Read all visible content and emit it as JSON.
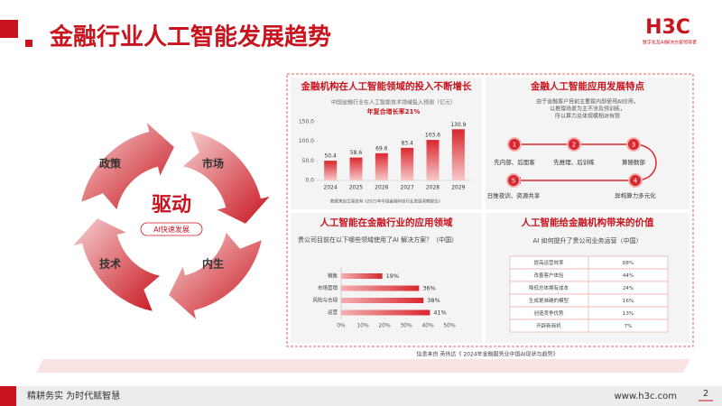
{
  "header": {
    "title": "金融行业人工智能发展趋势",
    "logo": "H3C",
    "logo_tagline": "数字化及AI解决方案领导者"
  },
  "cycle": {
    "center": "驱动",
    "badge": "AI快速发展",
    "drivers": [
      "政策",
      "市场",
      "内生",
      "技术"
    ]
  },
  "chart_data": [
    {
      "type": "bar",
      "panel_title": "金融机构在人工智能领域的投入不断增长",
      "title": "中国金融行业在人工智能技术领域投入预测（亿元）",
      "subtitle": "年复合增长率21%",
      "categories": [
        "2024",
        "2025",
        "2026",
        "2027",
        "2028",
        "2029"
      ],
      "values": [
        50.4,
        58.6,
        69.6,
        83.4,
        103.6,
        130.9
      ],
      "color": "#d9272e",
      "ylim": [
        0,
        150
      ],
      "yticks": [
        {
          "value": 0,
          "label": "0.0"
        },
        {
          "value": 50,
          "label": "50.0"
        },
        {
          "value": 100,
          "label": "100.0"
        },
        {
          "value": 150,
          "label": "150.0"
        }
      ],
      "source": "数据来自艾瑞咨询《2025年中国金融科技行业发展洞察报告》"
    },
    {
      "type": "hbar",
      "panel_title": "人工智能在金融行业的应用领域",
      "title": "贵公司目前在以下哪些领域使用了AI 解决方案？（中国）",
      "categories": [
        "销售",
        "市场营销",
        "风险与合规",
        "运营"
      ],
      "values": [
        19,
        36,
        38,
        41
      ],
      "value_labels": [
        "19%",
        "36%",
        "38%",
        "41%"
      ],
      "color": "#d9272e",
      "xlim": [
        0,
        50
      ],
      "xticks": [
        {
          "value": 0,
          "label": "0%"
        },
        {
          "value": 10,
          "label": "10%"
        },
        {
          "value": 20,
          "label": "20%"
        },
        {
          "value": 30,
          "label": "30%"
        },
        {
          "value": 40,
          "label": "40%"
        },
        {
          "value": 50,
          "label": "50%"
        }
      ]
    }
  ],
  "features": {
    "title": "金融人工智能应用发展特点",
    "intro": [
      "由于金融客户目前主要是内部使用AI应用，",
      "以推理场景为主不涉及预训练，",
      "所以算力总体规模相对有限"
    ],
    "steps": [
      {
        "num": 1,
        "label": "先内部、后面客"
      },
      {
        "num": 2,
        "label": "先推理、后训练"
      },
      {
        "num": 3,
        "label": "算随数部"
      },
      {
        "num": 4,
        "label": "异构算力多元化"
      },
      {
        "num": 5,
        "label": "日推夜训、资源共享"
      }
    ]
  },
  "value_table": {
    "title": "人工智能给金融机构带来的价值",
    "question": "AI 如何提升了贵公司业务运营（中国）",
    "rows": [
      [
        "提高运营效率",
        "68%"
      ],
      [
        "改善客户体验",
        "44%"
      ],
      [
        "降低总体拥有成本",
        "24%"
      ],
      [
        "生成更准确的模型",
        "16%"
      ],
      [
        "创造竞争优势",
        "13%"
      ],
      [
        "开辟新商机",
        "7%"
      ]
    ]
  },
  "footer": {
    "source": "信息来自 英伟达《 2024年金融服务业中国AI现状与趋势》",
    "slogan": "精耕务实 为时代赋智慧",
    "url": "www.h3c.com",
    "page": "2"
  }
}
